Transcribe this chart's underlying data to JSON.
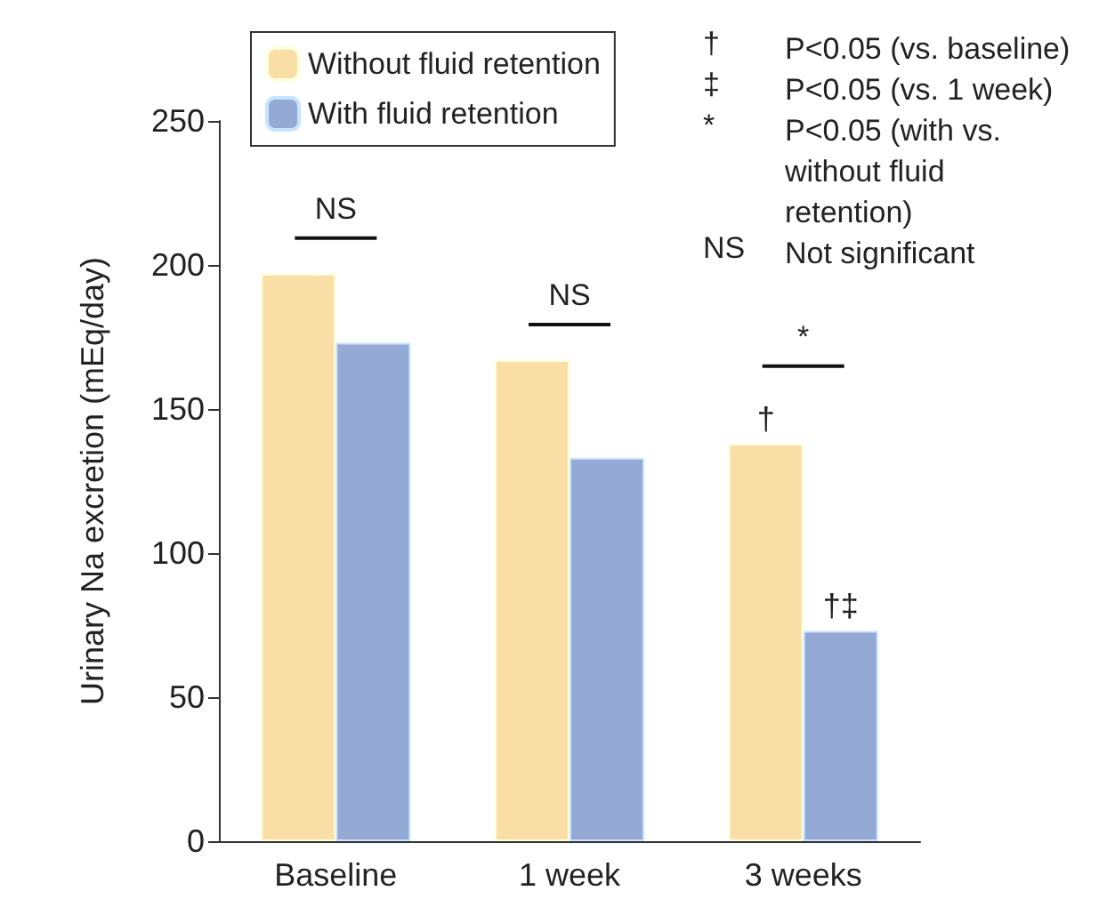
{
  "chart_data": {
    "type": "bar",
    "ylabel": "Urinary Na excretion (mEq/day)",
    "categories": [
      "Baseline",
      "1 week",
      "3 weeks"
    ],
    "series": [
      {
        "name": "Without fluid retention",
        "color": "#f9dea5",
        "values": [
          197,
          167,
          138
        ],
        "value_labels": [
          null,
          null,
          "†"
        ]
      },
      {
        "name": "With fluid retention",
        "color": "#94a9d4",
        "values": [
          173,
          133,
          73
        ],
        "value_labels": [
          null,
          null,
          "†‡"
        ]
      }
    ],
    "ylim": [
      0,
      250
    ],
    "yticks": [
      0,
      50,
      100,
      150,
      200,
      250
    ],
    "grid": false,
    "legend": "top left",
    "annotations": [
      "NS",
      "NS",
      "*",
      "† P<0.05 (vs. baseline)",
      "‡ P<0.05 (vs. 1 week)",
      "* P<0.05 (with vs. without fluid retention)",
      "NS Not significant"
    ]
  }
}
